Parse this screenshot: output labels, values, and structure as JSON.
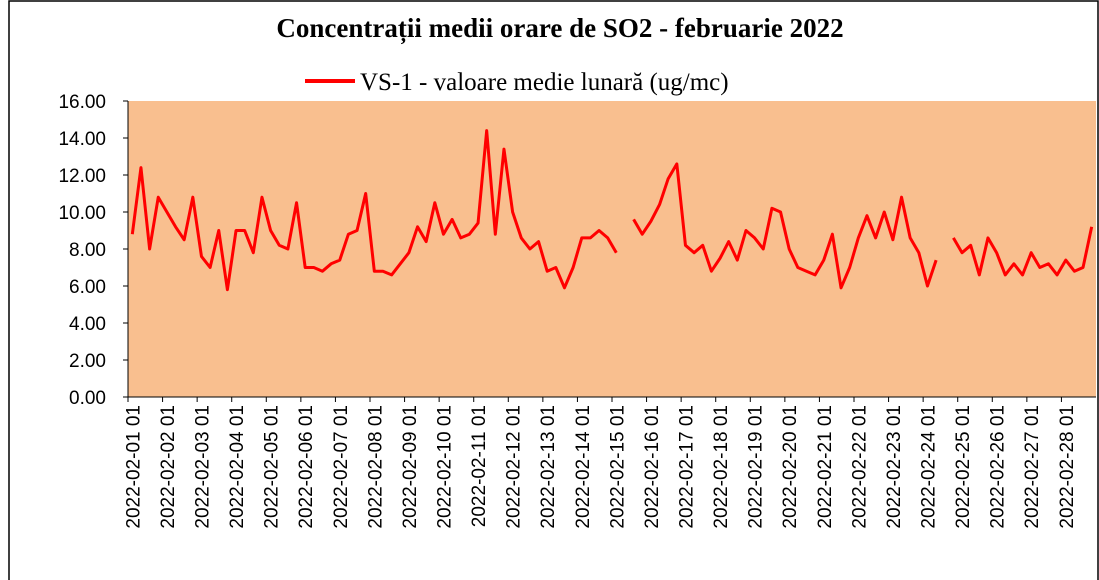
{
  "chart_data": {
    "type": "line",
    "title": "Concentrații medii orare de SO2 - februarie 2022",
    "categories": [
      "2022-02-01 01",
      null,
      null,
      null,
      "2022-02-02 01",
      null,
      null,
      null,
      "2022-02-03 01",
      null,
      null,
      null,
      "2022-02-04 01",
      null,
      null,
      null,
      "2022-02-05 01",
      null,
      null,
      null,
      "2022-02-06 01",
      null,
      null,
      null,
      "2022-02-07 01",
      null,
      null,
      null,
      "2022-02-08 01",
      null,
      null,
      null,
      "2022-02-09 01",
      null,
      null,
      null,
      "2022-02-10 01",
      null,
      null,
      null,
      "2022-02-11 01",
      null,
      null,
      null,
      "2022-02-12 01",
      null,
      null,
      null,
      "2022-02-13 01",
      null,
      null,
      null,
      "2022-02-14 01",
      null,
      null,
      null,
      "2022-02-15 01",
      null,
      null,
      null,
      "2022-02-16 01",
      null,
      null,
      null,
      "2022-02-17 01",
      null,
      null,
      null,
      "2022-02-18 01",
      null,
      null,
      null,
      "2022-02-19 01",
      null,
      null,
      null,
      "2022-02-20 01",
      null,
      null,
      null,
      "2022-02-21 01",
      null,
      null,
      null,
      "2022-02-22 01",
      null,
      null,
      null,
      "2022-02-23 01",
      null,
      null,
      null,
      "2022-02-24 01",
      null,
      null,
      null,
      "2022-02-25 01",
      null,
      null,
      null,
      "2022-02-26 01",
      null,
      null,
      null,
      "2022-02-27 01",
      null,
      null,
      null,
      "2022-02-28 01",
      null,
      null,
      null
    ],
    "series": [
      {
        "name": "VS-1 - valoare medie lunară (ug/mc)",
        "color": "#ff0000",
        "values": [
          8.8,
          12.4,
          8.0,
          10.8,
          10.0,
          9.2,
          8.5,
          10.8,
          7.6,
          7.0,
          9.0,
          5.8,
          9.0,
          9.0,
          7.8,
          10.8,
          9.0,
          8.2,
          8.0,
          10.5,
          7.0,
          7.0,
          6.8,
          7.2,
          7.4,
          8.8,
          9.0,
          11.0,
          6.8,
          6.8,
          6.6,
          7.2,
          7.8,
          9.2,
          8.4,
          10.5,
          8.8,
          9.6,
          8.6,
          8.8,
          9.4,
          14.4,
          8.8,
          13.4,
          10.0,
          8.6,
          8.0,
          8.4,
          6.8,
          7.0,
          5.9,
          7.0,
          8.6,
          8.6,
          9.0,
          8.6,
          7.8,
          null,
          9.6,
          8.8,
          9.5,
          10.4,
          11.8,
          12.6,
          8.2,
          7.8,
          8.2,
          6.8,
          7.5,
          8.4,
          7.4,
          9.0,
          8.6,
          8.0,
          10.2,
          10.0,
          8.0,
          7.0,
          6.8,
          6.6,
          7.4,
          8.8,
          5.9,
          7.0,
          8.6,
          9.8,
          8.6,
          10.0,
          8.5,
          10.8,
          8.6,
          7.8,
          6.0,
          7.4,
          null,
          8.6,
          7.8,
          8.2,
          6.6,
          8.6,
          7.8,
          6.6,
          7.2,
          6.6,
          7.8,
          7.0,
          7.2,
          6.6,
          7.4,
          6.8,
          7.0,
          9.2
        ]
      }
    ],
    "ylim": [
      0,
      16
    ],
    "yticks": [
      {
        "value": 0,
        "label": "0.00"
      },
      {
        "value": 2,
        "label": "2.00"
      },
      {
        "value": 4,
        "label": "4.00"
      },
      {
        "value": 6,
        "label": "6.00"
      },
      {
        "value": 8,
        "label": "8.00"
      },
      {
        "value": 10,
        "label": "10.00"
      },
      {
        "value": 12,
        "label": "12.00"
      },
      {
        "value": 14,
        "label": "14.00"
      },
      {
        "value": 16,
        "label": "16.00"
      }
    ],
    "plot_background": "#f9bf8f",
    "legend": "top"
  }
}
